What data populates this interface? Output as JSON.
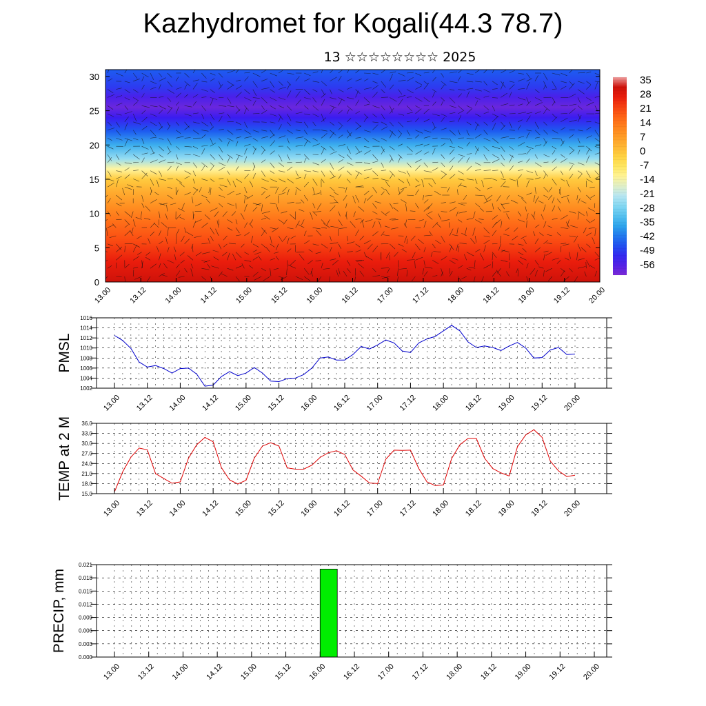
{
  "title": "Kazhydromet for Kogali(44.3 78.7)",
  "subtitle": "13 ☆☆☆☆☆☆☆☆ 2025",
  "x_ticks": [
    "13.00",
    "13.12",
    "14.00",
    "14.12",
    "15.00",
    "15.12",
    "16.00",
    "16.12",
    "17.00",
    "17.12",
    "18.00",
    "18.12",
    "19.00",
    "19.12",
    "20.00"
  ],
  "colors": {
    "pmsl_line": "#0000cc",
    "temp_line": "#dd0000",
    "precip_bar": "#00ee00"
  },
  "chart_data": [
    {
      "type": "heatmap",
      "name": "temperature-wind cross-section",
      "ylim": [
        0,
        31
      ],
      "y_ticks": [
        0,
        5,
        10,
        15,
        20,
        25,
        30
      ],
      "colorbar_labels": [
        "35",
        "28",
        "21",
        "14",
        "7",
        "0",
        "-7",
        "-14",
        "-21",
        "-28",
        "-35",
        "-42",
        "-49",
        "-56"
      ],
      "colorbar_range": [
        -60,
        38
      ],
      "profile": {
        "heights": [
          0,
          3,
          6,
          9,
          11,
          13,
          15,
          16.5,
          18,
          20,
          22,
          24,
          25.5,
          27,
          28.5,
          31
        ],
        "values": [
          33,
          28,
          22,
          16,
          11,
          6,
          0,
          -12,
          -24,
          -34,
          -44,
          -52,
          -58,
          -54,
          -48,
          -44
        ]
      }
    },
    {
      "type": "line",
      "ylabel": "PMSL",
      "ylim": [
        1002,
        1016
      ],
      "y_ticks": [
        "1002",
        "1004",
        "1006",
        "1008",
        "1010",
        "1012",
        "1014",
        "1016"
      ],
      "values": [
        1012.5,
        1011.5,
        1009.9,
        1007.2,
        1006.2,
        1006.5,
        1005.9,
        1005.0,
        1005.9,
        1006.0,
        1004.8,
        1002.4,
        1002.6,
        1004.3,
        1005.3,
        1004.5,
        1005.0,
        1006.1,
        1005.0,
        1003.4,
        1003.3,
        1003.9,
        1004.0,
        1004.7,
        1006.0,
        1008.0,
        1008.2,
        1007.6,
        1007.6,
        1008.7,
        1010.3,
        1009.8,
        1010.6,
        1011.6,
        1011.0,
        1009.4,
        1009.1,
        1011.0,
        1011.8,
        1012.3,
        1013.4,
        1014.5,
        1013.4,
        1011.2,
        1010.1,
        1010.4,
        1010.1,
        1009.5,
        1010.4,
        1011.1,
        1010.0,
        1008.0,
        1008.1,
        1009.6,
        1010.1,
        1008.7,
        1008.8
      ]
    },
    {
      "type": "line",
      "ylabel": "TEMP at 2 M",
      "ylim": [
        15,
        36
      ],
      "y_ticks": [
        "15.0",
        "18.0",
        "21.0",
        "24.0",
        "27.0",
        "30.0",
        "33.0",
        "36.0"
      ],
      "values": [
        15.5,
        21.5,
        25.9,
        28.6,
        28.1,
        21.0,
        19.5,
        18.1,
        18.5,
        25.6,
        29.6,
        31.8,
        30.5,
        22.8,
        19.1,
        17.9,
        19.0,
        25.6,
        29.2,
        30.2,
        29.2,
        22.7,
        22.3,
        22.3,
        23.5,
        25.8,
        27.2,
        27.8,
        26.7,
        22.1,
        20.2,
        18.2,
        18.0,
        25.3,
        28.0,
        27.9,
        28.0,
        22.5,
        18.5,
        17.4,
        17.6,
        25.5,
        29.6,
        31.5,
        31.5,
        25.6,
        22.5,
        21.2,
        20.3,
        29.0,
        32.5,
        34.1,
        31.8,
        24.7,
        21.8,
        20.1,
        20.5
      ]
    },
    {
      "type": "bar",
      "ylabel": "PRECIP, mm",
      "ylim": [
        0,
        0.021
      ],
      "y_ticks": [
        "0.000",
        "0.003",
        "0.006",
        "0.009",
        "0.012",
        "0.015",
        "0.018",
        "0.021"
      ],
      "bars": [
        {
          "x_start": 36,
          "x_end": 39,
          "value": 0.02
        }
      ]
    }
  ]
}
